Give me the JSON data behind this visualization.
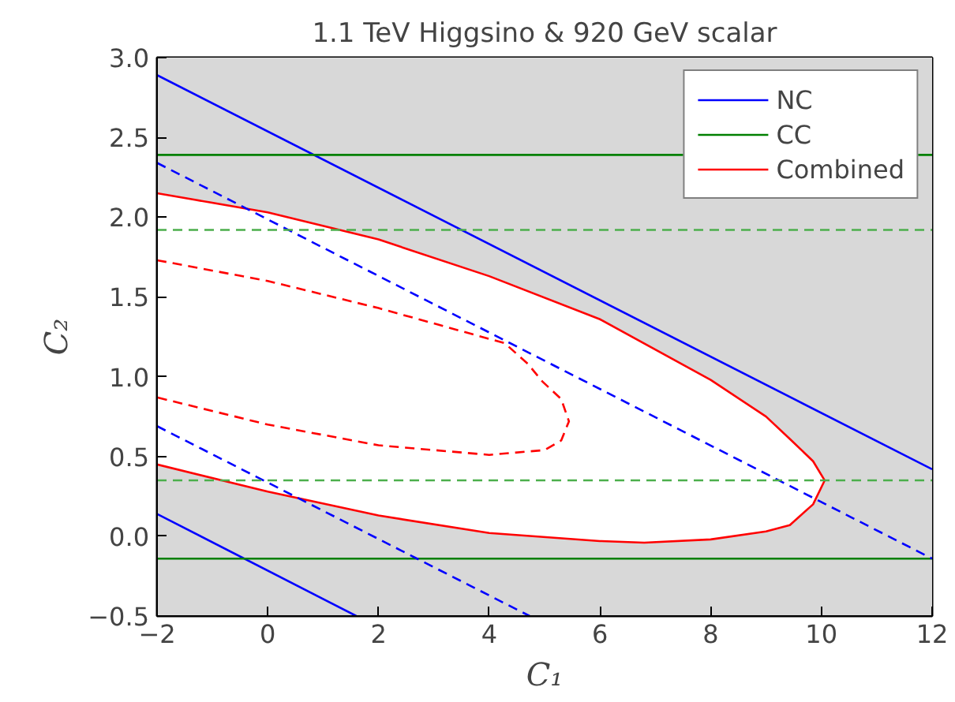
{
  "chart_data": {
    "type": "line",
    "title": "1.1 TeV Higgsino & 920 GeV scalar",
    "xlabel": "C₁",
    "ylabel": "C₂",
    "xlim": [
      -2,
      12
    ],
    "ylim": [
      -0.5,
      3.0
    ],
    "xticks": [
      {
        "value": -2,
        "label": "−2"
      },
      0,
      2,
      4,
      6,
      8,
      10,
      12
    ],
    "yticks": [
      {
        "value": -0.5,
        "label": "−0.5"
      },
      {
        "value": 0,
        "label": "0.0"
      },
      0.5,
      {
        "value": 1,
        "label": "1.0"
      },
      1.5,
      {
        "value": 2,
        "label": "2.0"
      },
      2.5,
      {
        "value": 3,
        "label": "3.0"
      }
    ],
    "legend": "top right",
    "bands": [
      {
        "axis": "y",
        "from": -0.5,
        "to": 3.0,
        "label": null,
        "color": "#d8d8d8"
      }
    ],
    "series": [
      {
        "name": "NC",
        "color": "#0000ff",
        "line_style": "solid",
        "x": [
          -2,
          12
        ],
        "values": [
          2.89,
          0.42
        ]
      },
      {
        "name": "CC",
        "color": "#008000",
        "line_style": "solid",
        "x": [
          -2,
          12
        ],
        "values": [
          2.39,
          2.39
        ]
      },
      {
        "name": "Combined",
        "type": "area",
        "color": "#ff0000",
        "line_style": "solid",
        "x": [
          -2,
          0,
          2,
          4,
          6,
          8,
          9,
          9.43,
          9.85,
          10.06,
          9.85,
          9.43,
          9,
          8,
          6.8,
          6,
          4,
          2,
          0,
          -2
        ],
        "values": [
          2.15,
          2.03,
          1.86,
          1.63,
          1.36,
          0.98,
          0.75,
          0.61,
          0.47,
          0.35,
          0.2,
          0.07,
          0.03,
          -0.02,
          -0.04,
          -0.03,
          0.02,
          0.13,
          0.28,
          0.45
        ]
      },
      {
        "color": "#0000ff",
        "line_style": "solid",
        "x": [
          -2,
          1.6
        ],
        "values": [
          0.14,
          -0.5
        ]
      },
      {
        "color": "#008000",
        "line_style": "solid",
        "x": [
          -2,
          12
        ],
        "values": [
          -0.14,
          -0.14
        ]
      },
      {
        "color": "#0000ff",
        "line_style": "dashed",
        "x": [
          -2,
          12
        ],
        "values": [
          2.34,
          -0.14
        ]
      },
      {
        "color": "#0000ff",
        "line_style": "dashed",
        "x": [
          -2,
          4.73
        ],
        "values": [
          0.69,
          -0.5
        ]
      },
      {
        "color": "#4caf4c",
        "line_style": "dashed",
        "x": [
          -2,
          12
        ],
        "values": [
          1.92,
          1.92
        ]
      },
      {
        "color": "#4caf4c",
        "line_style": "dashed",
        "x": [
          -2,
          12
        ],
        "values": [
          0.35,
          0.35
        ]
      },
      {
        "color": "#ff0000",
        "line_style": "dashed",
        "x": [
          -2,
          0,
          2,
          4.28,
          4.7,
          4.96,
          5.3,
          5.44,
          5.3,
          5,
          4,
          2,
          0,
          -2
        ],
        "values": [
          1.73,
          1.6,
          1.43,
          1.21,
          1.08,
          0.97,
          0.86,
          0.72,
          0.6,
          0.54,
          0.51,
          0.57,
          0.7,
          0.87
        ]
      }
    ]
  }
}
